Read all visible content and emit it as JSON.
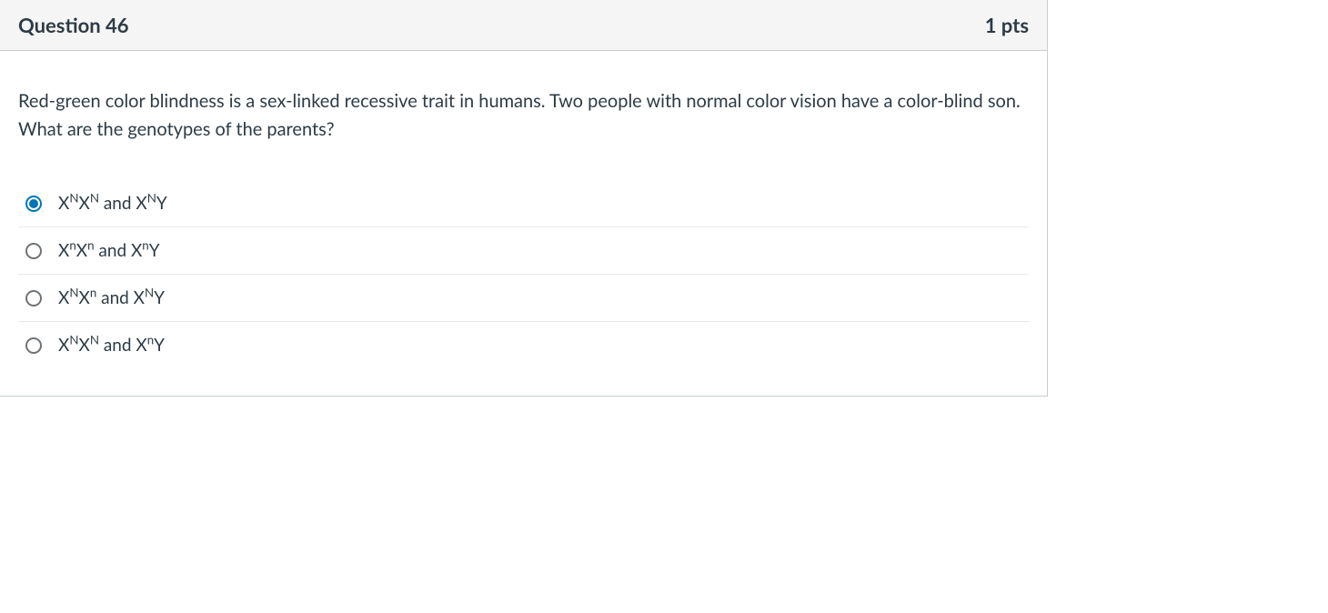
{
  "header": {
    "title": "Question 46",
    "points": "1 pts"
  },
  "question": {
    "text": "Red-green color blindness is a sex-linked recessive trait in humans. Two people with normal color vision have a color-blind son. What are the genotypes of the parents?"
  },
  "answers": [
    {
      "segments": [
        {
          "t": "X"
        },
        {
          "t": "N",
          "sup": true
        },
        {
          "t": "X"
        },
        {
          "t": "N",
          "sup": true
        },
        {
          "t": " and   X"
        },
        {
          "t": "N",
          "sup": true
        },
        {
          "t": "Y"
        }
      ],
      "selected": true
    },
    {
      "segments": [
        {
          "t": "X"
        },
        {
          "t": "n",
          "sup": true
        },
        {
          "t": "X"
        },
        {
          "t": "n",
          "sup": true
        },
        {
          "t": " and   X"
        },
        {
          "t": "n",
          "sup": true
        },
        {
          "t": "Y"
        }
      ],
      "selected": false
    },
    {
      "segments": [
        {
          "t": "X"
        },
        {
          "t": "N",
          "sup": true
        },
        {
          "t": "X"
        },
        {
          "t": "n",
          "sup": true
        },
        {
          "t": " and   X"
        },
        {
          "t": "N",
          "sup": true
        },
        {
          "t": "Y"
        }
      ],
      "selected": false
    },
    {
      "segments": [
        {
          "t": "X"
        },
        {
          "t": "N",
          "sup": true
        },
        {
          "t": "X"
        },
        {
          "t": "N",
          "sup": true
        },
        {
          "t": " and   X"
        },
        {
          "t": "n",
          "sup": true
        },
        {
          "t": "Y"
        }
      ],
      "selected": false
    }
  ],
  "colors": {
    "header_bg": "#f5f5f5",
    "border": "#c7cdd1",
    "text": "#2d3b45",
    "accent": "#0374b5",
    "radio_unchecked": "#6e7377",
    "answer_divider": "#e8eaec",
    "body_bg": "#ffffff"
  }
}
